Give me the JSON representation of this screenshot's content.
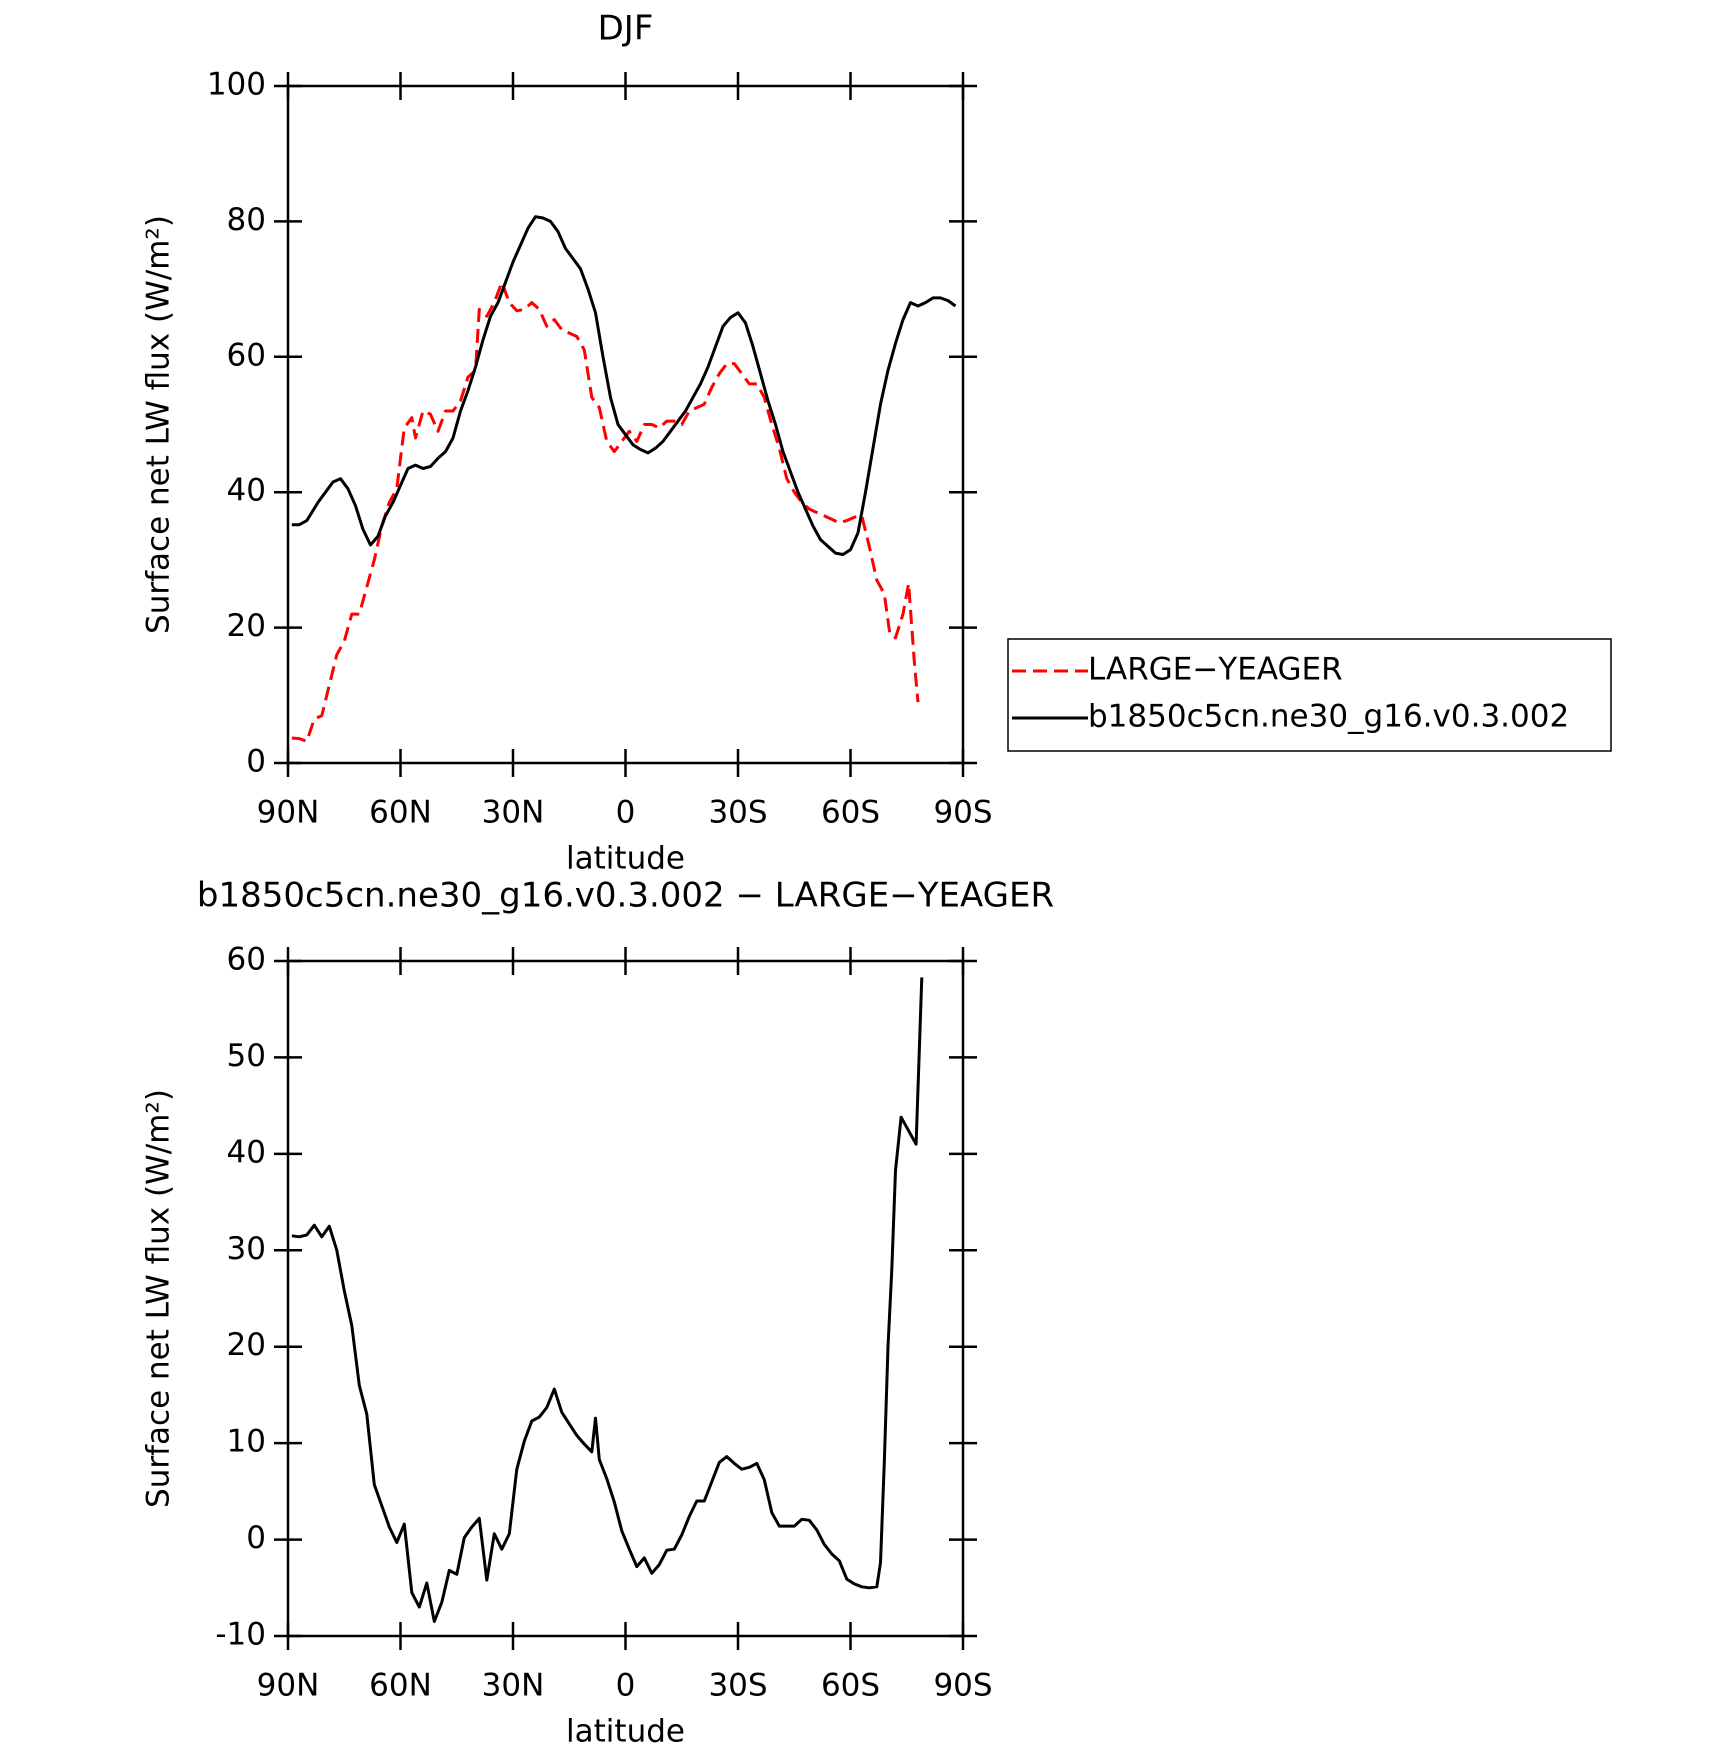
{
  "chart_data": [
    {
      "type": "line",
      "title": "DJF",
      "x_label": "latitude",
      "y_label": "Surface net LW flux (W/m²)",
      "xlim": [
        90,
        -90
      ],
      "xticks": [
        {
          "value": 90,
          "label": "90N"
        },
        {
          "value": 60,
          "label": "60N"
        },
        {
          "value": 30,
          "label": "30N"
        },
        0,
        {
          "value": -30,
          "label": "30S"
        },
        {
          "value": -60,
          "label": "60S"
        },
        {
          "value": -90,
          "label": "90S"
        }
      ],
      "ylim": [
        0,
        100
      ],
      "yticks": [
        0,
        20,
        40,
        60,
        80,
        100
      ],
      "legend": "right",
      "series": [
        {
          "name": "LARGE−YEAGER",
          "color": "#ff0000",
          "dash": true,
          "x": [
            89,
            87,
            85,
            83,
            81,
            79,
            77,
            75,
            73,
            71,
            69,
            67,
            65,
            63,
            61,
            60,
            59,
            57,
            56,
            54,
            52,
            50,
            48,
            46,
            44,
            42,
            40,
            39,
            37,
            35,
            33,
            31,
            29,
            27,
            25,
            23,
            21,
            19,
            17,
            15,
            13,
            11,
            9,
            7,
            5,
            3,
            1,
            -1,
            -3,
            -5,
            -7,
            -9,
            -11,
            -13,
            -15,
            -17,
            -19,
            -21,
            -23,
            -25,
            -27,
            -29,
            -31,
            -33,
            -35,
            -37,
            -39,
            -41,
            -43,
            -45,
            -47,
            -49,
            -51,
            -53,
            -55,
            -57,
            -59,
            -61,
            -63,
            -65,
            -67,
            -69,
            -70.5,
            -72,
            -74,
            -75.5,
            -77,
            -78
          ],
          "values": [
            3.7,
            3.6,
            3.2,
            6.5,
            7,
            11.5,
            16,
            18,
            22,
            22,
            26,
            30,
            35,
            38.5,
            40.5,
            45,
            49.5,
            51,
            48,
            52,
            51.5,
            49,
            52,
            52,
            53.5,
            57,
            58,
            67,
            66,
            68,
            71,
            68,
            66.8,
            67,
            68,
            67,
            64.5,
            65.5,
            64,
            63.5,
            63,
            61,
            54,
            52.5,
            47.5,
            46,
            47.5,
            49,
            47.5,
            50,
            50,
            49.5,
            50.5,
            50.5,
            50,
            52,
            52.5,
            53,
            55.5,
            57.5,
            59,
            59,
            57.5,
            56,
            56,
            54,
            50,
            46.5,
            42,
            40,
            38.5,
            37.5,
            37,
            36.5,
            36,
            35.5,
            35.8,
            36.3,
            36.5,
            32,
            27,
            25,
            19,
            18.5,
            22,
            26.5,
            15,
            9
          ]
        },
        {
          "name": "b1850c5cn.ne30_g16.v0.3.002",
          "color": "#000000",
          "dash": false,
          "x": [
            89,
            87,
            85,
            82,
            80,
            78,
            76,
            74,
            72,
            70,
            68,
            66,
            64,
            62,
            60,
            58,
            56,
            54,
            52,
            50,
            48,
            46,
            44,
            42,
            40,
            38,
            36,
            34,
            32,
            30,
            28,
            26,
            24,
            22,
            20,
            18,
            16,
            14,
            12,
            10,
            8,
            6,
            4,
            2,
            0,
            -2,
            -4,
            -6,
            -8,
            -10,
            -12,
            -14,
            -16,
            -18,
            -20,
            -22,
            -24,
            -26,
            -28,
            -30,
            -32,
            -34,
            -36,
            -38,
            -40,
            -42,
            -44,
            -46,
            -48,
            -50,
            -52,
            -54,
            -56,
            -58,
            -60,
            -62,
            -64,
            -66,
            -68,
            -70,
            -72,
            -74,
            -76,
            -78,
            -80,
            -82,
            -84,
            -86,
            -88
          ],
          "values": [
            35.2,
            35.2,
            35.8,
            38.5,
            40,
            41.5,
            42,
            40.5,
            38,
            34.5,
            32.2,
            33.5,
            36.5,
            38.5,
            41,
            43.5,
            44,
            43.5,
            43.8,
            45,
            46,
            48,
            52,
            55,
            58.5,
            62.5,
            66,
            68,
            71,
            74,
            76.5,
            79,
            80.7,
            80.5,
            80,
            78.5,
            76,
            74.5,
            73,
            70,
            66.5,
            60,
            54,
            50,
            48.5,
            47,
            46.3,
            45.8,
            46.5,
            47.5,
            49,
            50.5,
            52,
            54,
            56,
            58.5,
            61.5,
            64.5,
            65.8,
            66.5,
            65,
            61.5,
            57.5,
            53.5,
            50,
            46,
            43,
            40,
            37.5,
            35,
            33,
            32,
            31,
            30.8,
            31.5,
            34,
            40,
            46.5,
            53,
            58,
            62,
            65.5,
            68,
            67.5,
            68,
            68.7,
            68.7,
            68.3,
            67.5
          ]
        }
      ]
    },
    {
      "type": "line",
      "title": "b1850c5cn.ne30_g16.v0.3.002 − LARGE−YEAGER",
      "x_label": "latitude",
      "y_label": "Surface net LW flux (W/m²)",
      "xlim": [
        90,
        -90
      ],
      "xticks": [
        {
          "value": 90,
          "label": "90N"
        },
        {
          "value": 60,
          "label": "60N"
        },
        {
          "value": 30,
          "label": "30N"
        },
        0,
        {
          "value": -30,
          "label": "30S"
        },
        {
          "value": -60,
          "label": "60S"
        },
        {
          "value": -90,
          "label": "90S"
        }
      ],
      "ylim": [
        -10,
        60
      ],
      "yticks": [
        -10,
        0,
        10,
        20,
        30,
        40,
        50,
        60
      ],
      "series": [
        {
          "color": "#000000",
          "dash": false,
          "x": [
            89,
            87,
            85,
            83,
            81,
            79,
            77,
            75,
            73,
            71,
            69,
            67,
            65,
            63,
            61,
            59,
            57,
            55,
            53,
            51,
            49,
            47,
            45,
            43,
            41,
            39,
            37,
            35,
            33,
            31,
            29,
            27,
            25,
            23,
            21,
            19,
            17,
            15,
            13,
            11,
            9,
            8,
            7,
            5,
            3,
            1,
            -1,
            -3,
            -5,
            -7,
            -9,
            -11,
            -13,
            -15,
            -17,
            -19,
            -21,
            -23,
            -25,
            -27,
            -29,
            -31,
            -33,
            -35,
            -37,
            -39,
            -41,
            -43,
            -45,
            -47,
            -49,
            -51,
            -53,
            -55,
            -57,
            -59,
            -61,
            -63,
            -65,
            -67,
            -68,
            -69,
            -70,
            -71,
            -72,
            -73.5,
            -77.5,
            -79
          ],
          "values": [
            31.5,
            31.4,
            31.6,
            32.6,
            31.4,
            32.5,
            30,
            25.8,
            22.2,
            16,
            13,
            5.7,
            3.5,
            1.3,
            -0.3,
            1.6,
            -5.5,
            -7,
            -4.5,
            -8.5,
            -6.5,
            -3.2,
            -3.6,
            0.2,
            1.3,
            2.2,
            -4.2,
            0.6,
            -1,
            0.6,
            7.3,
            10.2,
            12.3,
            12.7,
            13.7,
            15.6,
            13.2,
            12,
            10.8,
            9.9,
            9.1,
            12.6,
            8.3,
            6.3,
            3.9,
            0.9,
            -1,
            -2.8,
            -1.9,
            -3.5,
            -2.6,
            -1.1,
            -1,
            0.5,
            2.4,
            4,
            4,
            6,
            8,
            8.6,
            7.9,
            7.3,
            7.5,
            7.9,
            6.2,
            2.8,
            1.4,
            1.4,
            1.4,
            2.1,
            2,
            1,
            -0.5,
            -1.5,
            -2.2,
            -4.1,
            -4.6,
            -4.9,
            -5,
            -4.9,
            -2.4,
            8,
            20,
            28,
            38.3,
            43.8,
            41,
            58.3
          ]
        }
      ]
    }
  ]
}
